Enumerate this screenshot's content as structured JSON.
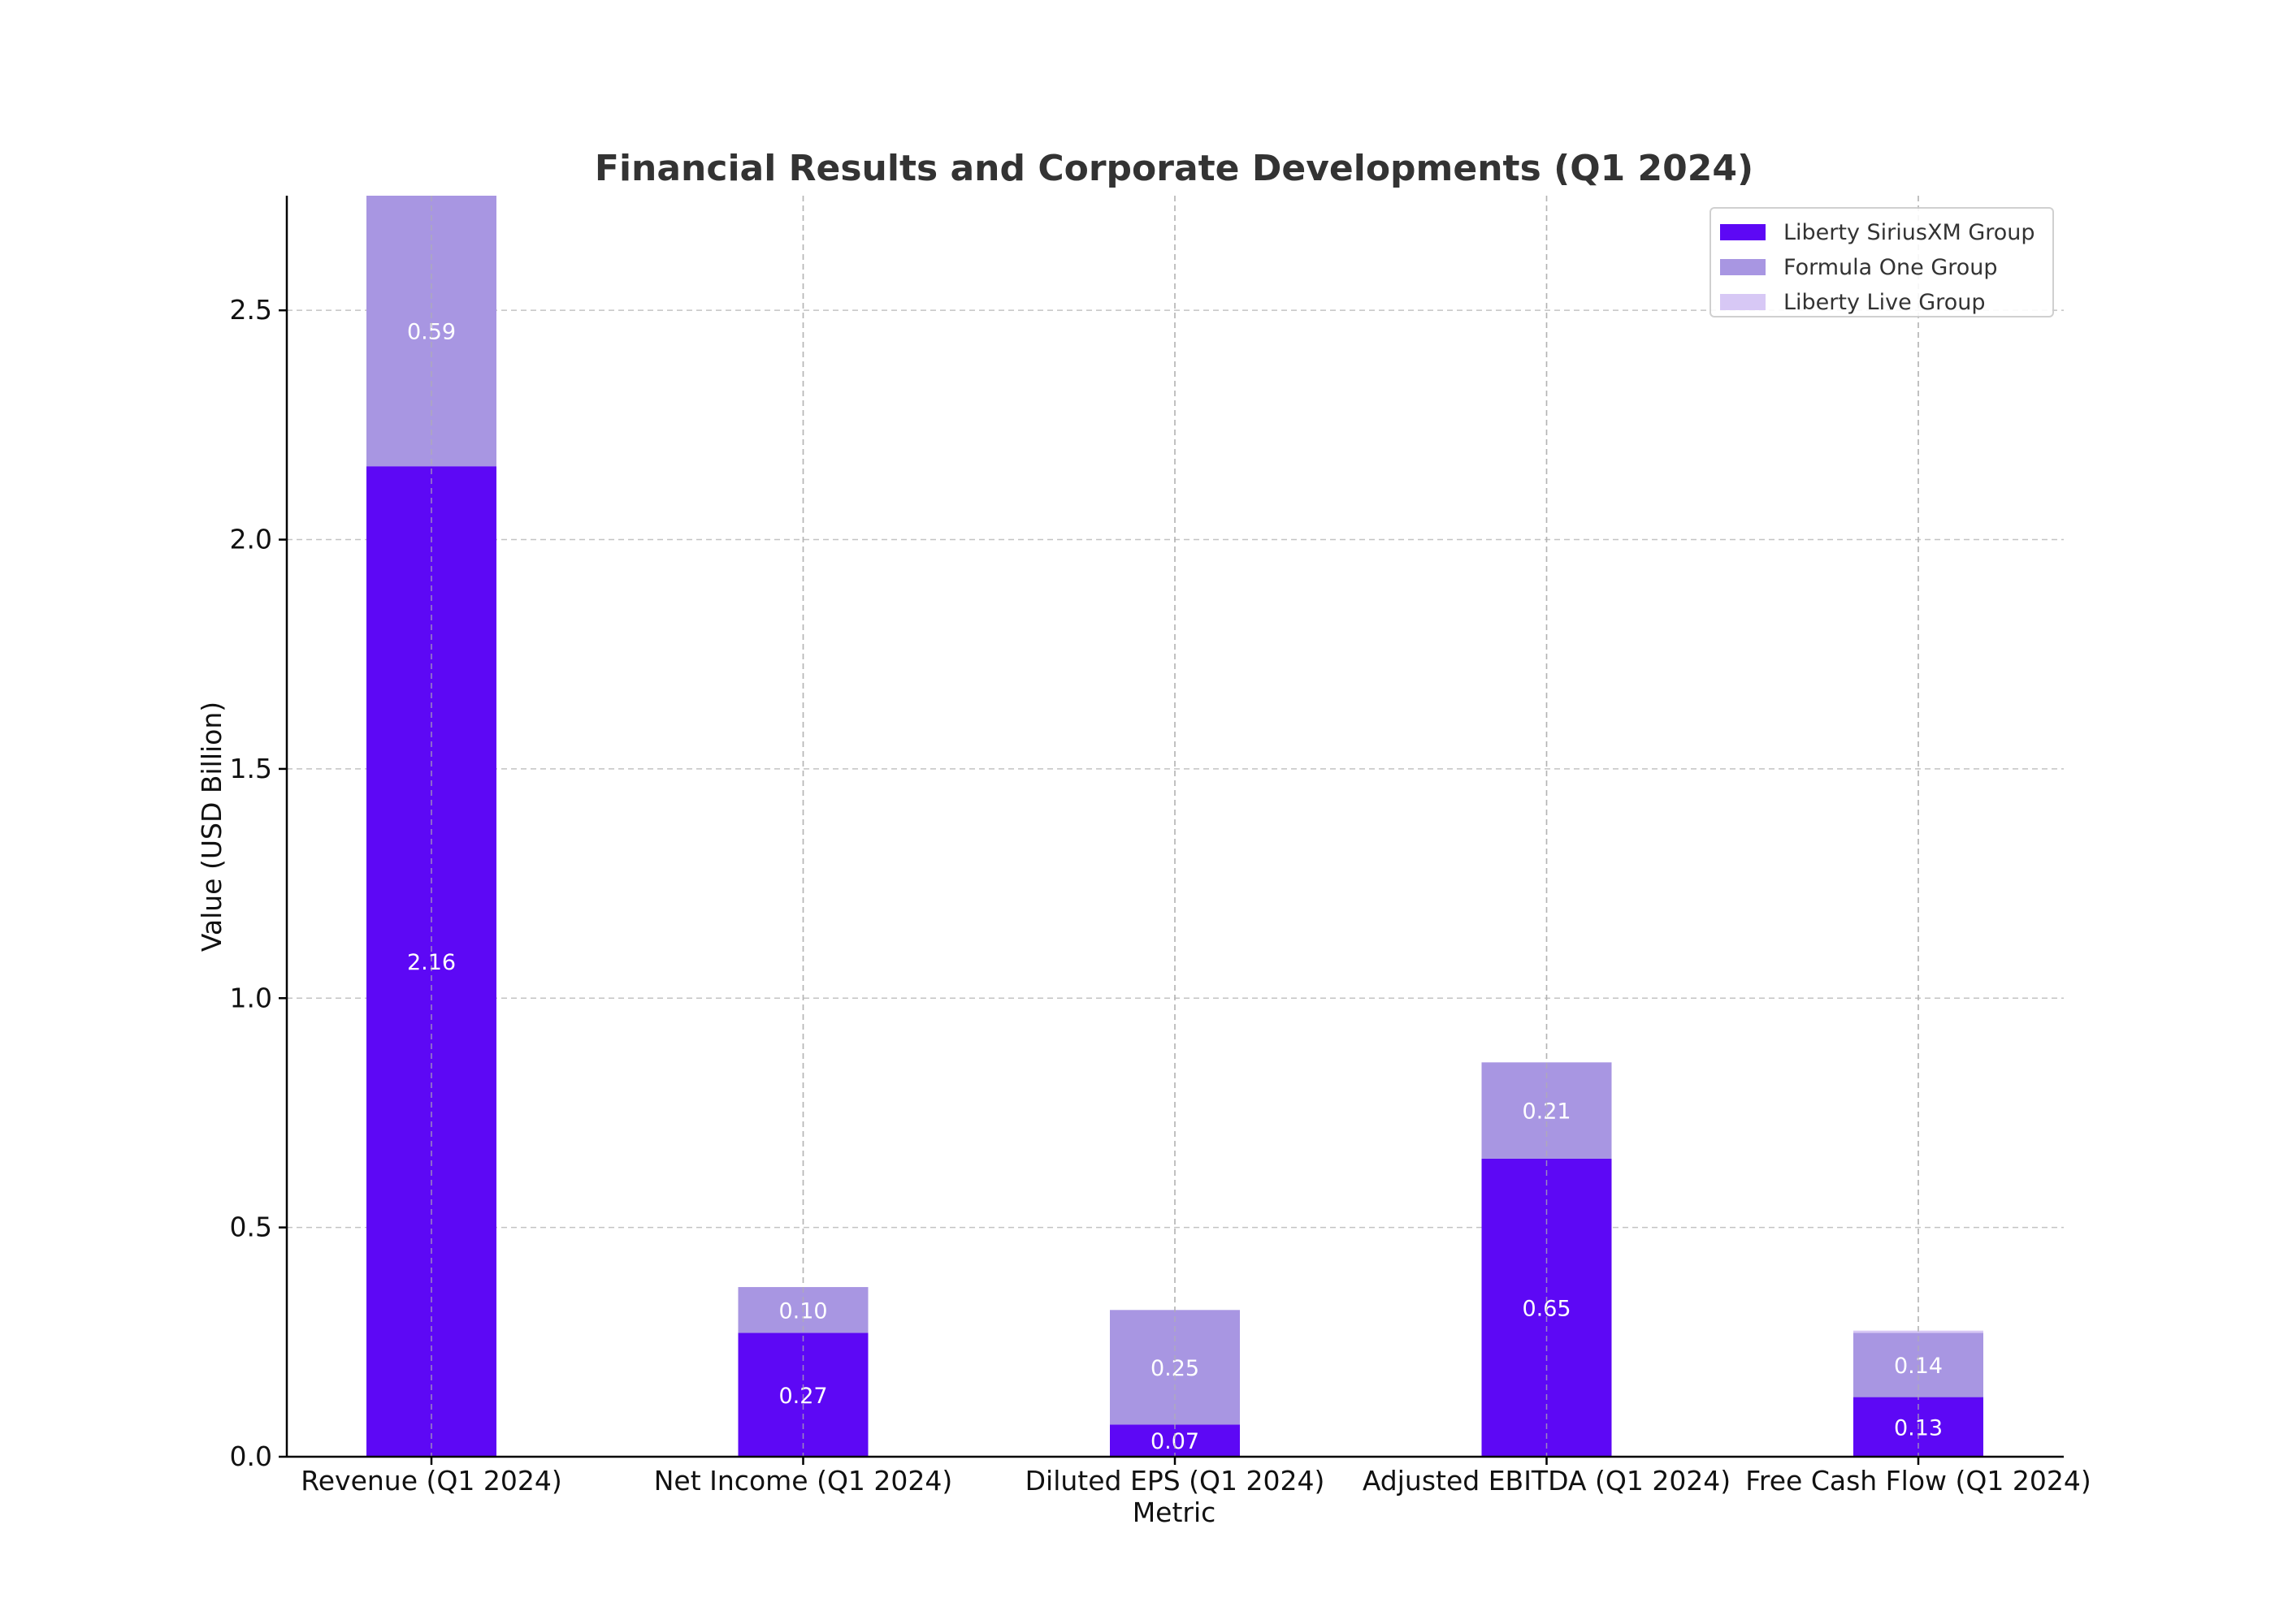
{
  "chart_data": {
    "type": "bar",
    "stacked": true,
    "title": "Financial Results and Corporate Developments (Q1 2024)",
    "xlabel": "Metric",
    "ylabel": "Value (USD Billion)",
    "ylim": [
      0,
      2.75
    ],
    "yticks": [
      "0.0",
      "0.5",
      "1.0",
      "1.5",
      "2.0",
      "2.5"
    ],
    "grid": true,
    "legend_position": "top-right",
    "categories": [
      "Revenue (Q1 2024)",
      "Net Income (Q1 2024)",
      "Diluted EPS (Q1 2024)",
      "Adjusted EBITDA (Q1 2024)",
      "Free Cash Flow (Q1 2024)"
    ],
    "series": [
      {
        "name": "Liberty SiriusXM Group",
        "color": "#5d08f5",
        "values": [
          2.16,
          0.27,
          0.07,
          0.65,
          0.13
        ]
      },
      {
        "name": "Formula One Group",
        "color": "#a896e2",
        "values": [
          0.59,
          0.1,
          0.25,
          0.21,
          0.14
        ]
      },
      {
        "name": "Liberty Live Group",
        "color": "#d7c8f5",
        "values": [
          0,
          0,
          0,
          0,
          0.005
        ]
      }
    ]
  }
}
